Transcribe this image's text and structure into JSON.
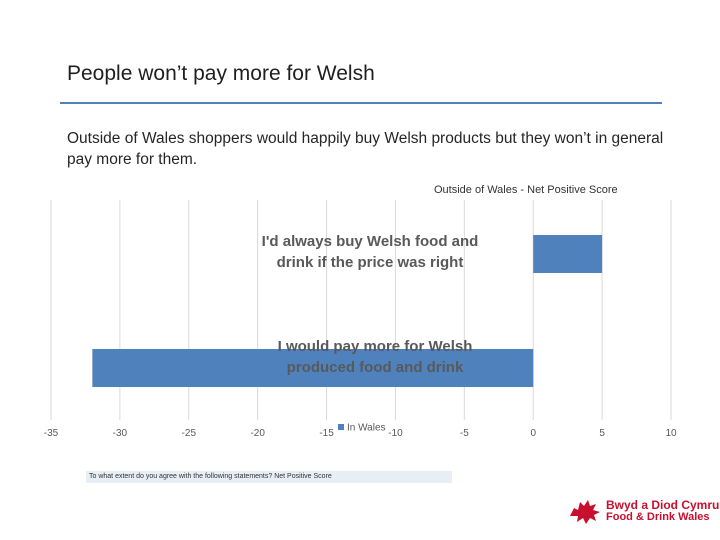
{
  "slide": {
    "title": "People won’t pay more for Welsh",
    "subtitle": "Outside of Wales shoppers would happily buy Welsh products but they won’t in general pay more for them.",
    "footnote": "To what extent do you agree with the following statements? Net Positive Score"
  },
  "logo": {
    "line1": "Bwyd a Diod Cymru",
    "line2": "Food & Drink Wales"
  },
  "chart_data": {
    "type": "bar",
    "orientation": "horizontal",
    "title": "Outside of  Wales - Net Positive Score",
    "categories": [
      "I'd always buy Welsh food and drink if the price was right",
      "I would pay more for Welsh produced food and drink"
    ],
    "series": [
      {
        "name": "In Wales",
        "values": [
          5,
          -32
        ]
      }
    ],
    "xlim": [
      -35,
      10
    ],
    "xticks": [
      -35,
      -30,
      -25,
      -20,
      -15,
      -10,
      -5,
      0,
      5,
      10
    ],
    "grid": true,
    "legend": "bottom",
    "colors": {
      "bar": "#4f81bd",
      "grid": "#d9d9d9",
      "category_text": "#595959"
    }
  }
}
